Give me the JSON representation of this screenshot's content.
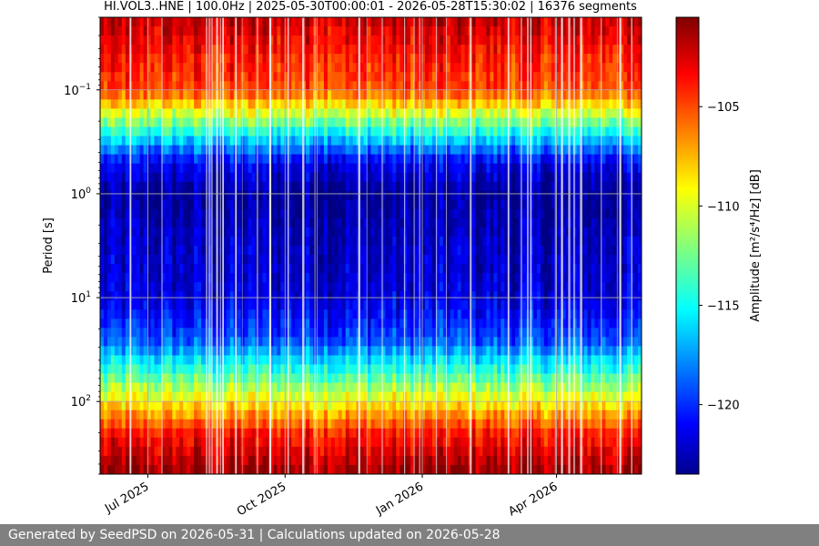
{
  "chart_data": {
    "type": "heatmap",
    "title": "HI.VOL3..HNE | 100.0Hz | 2025-05-30T00:00:01 - 2026-05-28T15:30:02 | 16376 segments",
    "xlabel": "",
    "ylabel": "Period [s]",
    "x_range": [
      "2025-05-30",
      "2026-05-28"
    ],
    "x_ticks": [
      {
        "date": "2025-07-01",
        "label": "Jul 2025"
      },
      {
        "date": "2025-10-01",
        "label": "Oct 2025"
      },
      {
        "date": "2026-01-01",
        "label": "Jan 2026"
      },
      {
        "date": "2026-04-01",
        "label": "Apr 2026"
      }
    ],
    "y_scale": "log",
    "y_inverted": true,
    "y_range": [
      0.02,
      500
    ],
    "y_ticks": [
      {
        "value": 0.1,
        "base": "10",
        "exp": "−1"
      },
      {
        "value": 1,
        "base": "10",
        "exp": "0"
      },
      {
        "value": 10,
        "base": "10",
        "exp": "1"
      },
      {
        "value": 100,
        "base": "10",
        "exp": "2"
      }
    ],
    "grid": true,
    "colormap": "jet",
    "colorbar": {
      "label": "Amplitude [m²/s⁴/Hz] [dB]",
      "range": [
        -123.5,
        -100.5
      ],
      "ticks": [
        {
          "value": -105,
          "label": "−105"
        },
        {
          "value": -110,
          "label": "−110"
        },
        {
          "value": -115,
          "label": "−115"
        },
        {
          "value": -120,
          "label": "−120"
        }
      ]
    },
    "amplitude_profile_by_period": [
      {
        "period": 0.02,
        "db": -102
      },
      {
        "period": 0.05,
        "db": -104
      },
      {
        "period": 0.1,
        "db": -105
      },
      {
        "period": 0.15,
        "db": -109
      },
      {
        "period": 0.3,
        "db": -116
      },
      {
        "period": 0.5,
        "db": -121
      },
      {
        "period": 1,
        "db": -123
      },
      {
        "period": 3,
        "db": -122
      },
      {
        "period": 10,
        "db": -121.5
      },
      {
        "period": 25,
        "db": -119
      },
      {
        "period": 50,
        "db": -114
      },
      {
        "period": 100,
        "db": -109
      },
      {
        "period": 200,
        "db": -104
      },
      {
        "period": 500,
        "db": -101
      }
    ]
  },
  "footer": {
    "text": "Generated by SeedPSD on 2026-05-31 | Calculations updated on 2026-05-28"
  }
}
